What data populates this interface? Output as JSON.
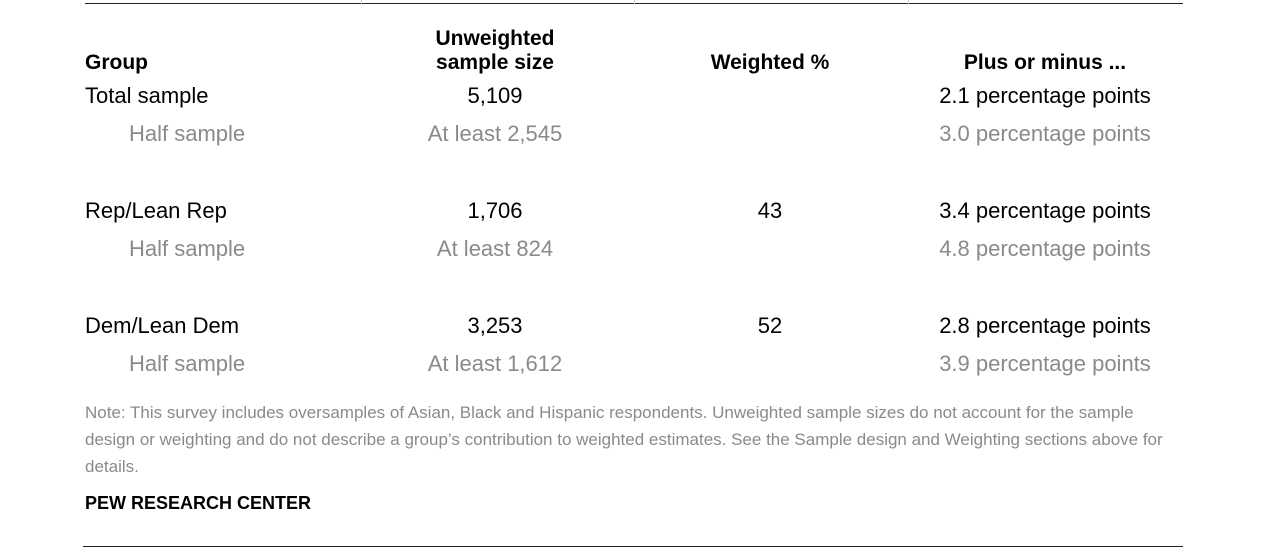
{
  "table": {
    "headers": {
      "group": "Group",
      "sample_size_line1": "Unweighted",
      "sample_size_line2": "sample size",
      "weighted": "Weighted %",
      "moe": "Plus or minus ..."
    },
    "rows": [
      {
        "group": "Total sample",
        "size": "5,109",
        "weighted": "",
        "moe": "2.1 percentage points",
        "sub": false
      },
      {
        "group": "Half sample",
        "size": "At least 2,545",
        "weighted": "",
        "moe": "3.0 percentage points",
        "sub": true
      },
      {
        "group": "Rep/Lean Rep",
        "size": "1,706",
        "weighted": "43",
        "moe": "3.4 percentage points",
        "sub": false
      },
      {
        "group": "Half sample",
        "size": "At least 824",
        "weighted": "",
        "moe": "4.8 percentage points",
        "sub": true
      },
      {
        "group": "Dem/Lean Dem",
        "size": "3,253",
        "weighted": "52",
        "moe": "2.8 percentage points",
        "sub": false
      },
      {
        "group": "Half sample",
        "size": "At least 1,612",
        "weighted": "",
        "moe": "3.9 percentage points",
        "sub": true
      }
    ]
  },
  "note": "Note: This survey includes oversamples of Asian, Black and Hispanic respondents. Unweighted sample sizes do not account for the sample design or weighting and do not describe a group’s contribution to weighted estimates. See the Sample design and Weighting sections above for details.",
  "source": "PEW RESEARCH CENTER",
  "colors": {
    "primary_text": "#000000",
    "secondary_text": "#8a8a8a",
    "rule": "#222222"
  }
}
